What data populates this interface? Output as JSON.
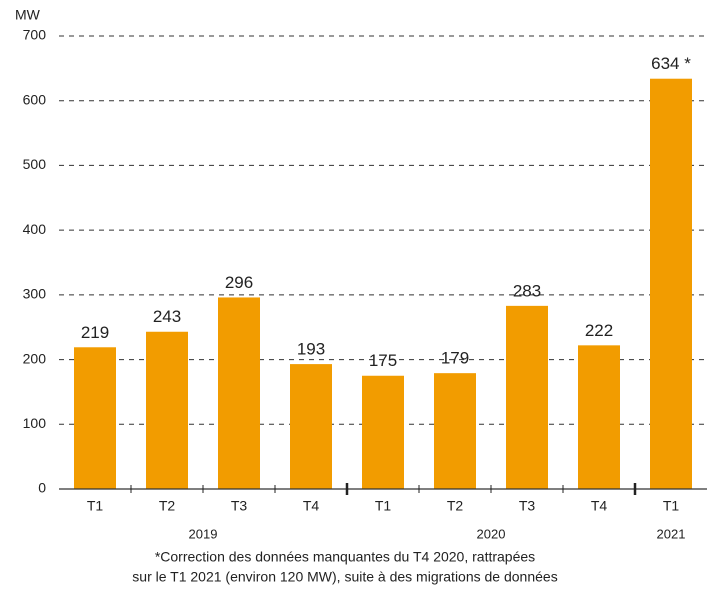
{
  "chart_data": {
    "type": "bar",
    "y_label": "MW",
    "categories": [
      "T1",
      "T2",
      "T3",
      "T4",
      "T1",
      "T2",
      "T3",
      "T4",
      "T1"
    ],
    "groups": [
      {
        "label": "2019",
        "size": 4
      },
      {
        "label": "2020",
        "size": 4
      },
      {
        "label": "2021",
        "size": 1
      }
    ],
    "values": [
      219,
      243,
      296,
      193,
      175,
      179,
      283,
      222,
      634
    ],
    "value_labels": [
      "219",
      "243",
      "296",
      "193",
      "175",
      "179",
      "283",
      "222",
      "634 *"
    ],
    "color": "#f29c00",
    "ylim": [
      0,
      700
    ],
    "yticks": [
      0,
      100,
      200,
      300,
      400,
      500,
      600,
      700
    ],
    "grid": true,
    "footnote": [
      "*Correction des données manquantes du T4 2020, rattrapées",
      "sur le T1 2021 (environ 120 MW), suite à des migrations de données"
    ]
  }
}
